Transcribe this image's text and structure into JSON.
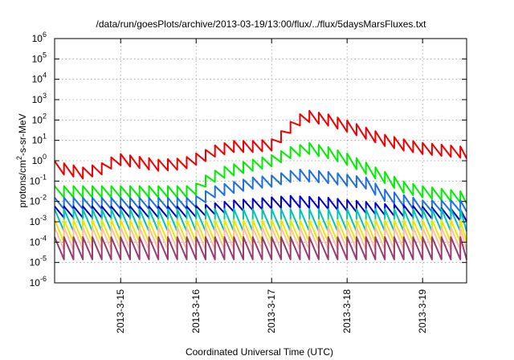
{
  "chart_data": {
    "type": "line",
    "title": "/data/run/goesPlots/archive/2013-03-19/13:00/flux/../flux/5daysMarsFluxes.txt",
    "xlabel": "Coordinated Universal Time (UTC)",
    "ylabel": {
      "prefix": "protons/cm",
      "sup": "2",
      "suffix": "-s-sr-MeV"
    },
    "yscale": "log",
    "ylim": [
      1e-06,
      1000000.0
    ],
    "xlim": [
      "2013-03-14 03:00",
      "2013-03-19 14:00"
    ],
    "grid": true,
    "legend": "none",
    "y_ticks": [
      {
        "value": 1e-06,
        "base": "10",
        "exp": "-6"
      },
      {
        "value": 1e-05,
        "base": "10",
        "exp": "-5"
      },
      {
        "value": 0.0001,
        "base": "10",
        "exp": "-4"
      },
      {
        "value": 0.001,
        "base": "10",
        "exp": "-3"
      },
      {
        "value": 0.01,
        "base": "10",
        "exp": "-2"
      },
      {
        "value": 0.1,
        "base": "10",
        "exp": "-1"
      },
      {
        "value": 1.0,
        "base": "10",
        "exp": "0"
      },
      {
        "value": 10.0,
        "base": "10",
        "exp": "1"
      },
      {
        "value": 100.0,
        "base": "10",
        "exp": "2"
      },
      {
        "value": 1000.0,
        "base": "10",
        "exp": "3"
      },
      {
        "value": 10000.0,
        "base": "10",
        "exp": "4"
      },
      {
        "value": 100000.0,
        "base": "10",
        "exp": "5"
      },
      {
        "value": 1000000.0,
        "base": "10",
        "exp": "6"
      }
    ],
    "x_ticks": [
      {
        "value": "2013-03-15 00:00",
        "label": "2013-3-15"
      },
      {
        "value": "2013-03-16 00:00",
        "label": "2013-3-16"
      },
      {
        "value": "2013-03-17 00:00",
        "label": "2013-3-17"
      },
      {
        "value": "2013-03-18 00:00",
        "label": "2013-3-18"
      },
      {
        "value": "2013-03-19 00:00",
        "label": "2013-3-19"
      }
    ],
    "series": [
      {
        "color": "#ee0000",
        "x": [
          "2013-03-14 03:00",
          "2013-03-14 12:00",
          "2013-03-14 18:00",
          "2013-03-14 23:00",
          "2013-03-15 12:00",
          "2013-03-15 20:00",
          "2013-03-16 03:00",
          "2013-03-16 06:00",
          "2013-03-16 12:00",
          "2013-03-16 18:00",
          "2013-03-17 00:00",
          "2013-03-17 03:00",
          "2013-03-17 05:00",
          "2013-03-17 08:00",
          "2013-03-17 12:00",
          "2013-03-17 18:00",
          "2013-03-18 00:00",
          "2013-03-18 12:00",
          "2013-03-18 18:00",
          "2013-03-19 00:00",
          "2013-03-19 14:00"
        ],
        "y": [
          0.5,
          0.25,
          0.4,
          1.2,
          0.6,
          0.7,
          1.8,
          3,
          5,
          5,
          6,
          15,
          30,
          90,
          150,
          100,
          50,
          10,
          6,
          4,
          2.5
        ]
      },
      {
        "color": "#00ee00",
        "x": [
          "2013-03-14 03:00",
          "2013-03-15 12:00",
          "2013-03-15 23:00",
          "2013-03-16 03:00",
          "2013-03-16 08:00",
          "2013-03-16 18:00",
          "2013-03-17 00:00",
          "2013-03-17 06:00",
          "2013-03-17 12:00",
          "2013-03-17 18:00",
          "2013-03-18 00:00",
          "2013-03-18 12:00",
          "2013-03-18 18:00",
          "2013-03-19 00:00",
          "2013-03-19 14:00"
        ],
        "y": [
          0.03,
          0.03,
          0.03,
          0.1,
          0.25,
          0.6,
          1.0,
          2.5,
          4,
          2.5,
          1.2,
          0.15,
          0.05,
          0.03,
          0.015
        ]
      },
      {
        "color": "#1e6fe0",
        "x": [
          "2013-03-14 03:00",
          "2013-03-15 12:00",
          "2013-03-15 23:00",
          "2013-03-16 06:00",
          "2013-03-16 18:00",
          "2013-03-17 00:00",
          "2013-03-17 08:00",
          "2013-03-17 18:00",
          "2013-03-18 06:00",
          "2013-03-18 12:00",
          "2013-03-19 00:00",
          "2013-03-19 14:00"
        ],
        "y": [
          0.008,
          0.008,
          0.008,
          0.03,
          0.08,
          0.1,
          0.2,
          0.15,
          0.08,
          0.02,
          0.006,
          0.006
        ]
      },
      {
        "color": "#0000cc",
        "x": [
          "2013-03-14 03:00",
          "2013-03-15 23:00",
          "2013-03-16 12:00",
          "2013-03-17 06:00",
          "2013-03-17 18:00",
          "2013-03-18 12:00",
          "2013-03-19 14:00"
        ],
        "y": [
          0.003,
          0.003,
          0.006,
          0.01,
          0.008,
          0.004,
          0.002
        ]
      },
      {
        "color": "#00c4b0",
        "x": [
          "2013-03-14 03:00",
          "2013-03-19 14:00"
        ],
        "y": [
          0.0012,
          0.0012
        ]
      },
      {
        "color": "#e8e800",
        "x": [
          "2013-03-14 03:00",
          "2013-03-19 14:00"
        ],
        "y": [
          0.00035,
          0.00035
        ]
      },
      {
        "color": "#ffc0a0",
        "x": [
          "2013-03-14 03:00",
          "2013-03-19 14:00"
        ],
        "y": [
          0.00015,
          0.00015
        ]
      },
      {
        "color": "#9b3a6e",
        "x": [
          "2013-03-14 03:00",
          "2013-03-19 14:00"
        ],
        "y": [
          5e-05,
          5e-05
        ]
      }
    ]
  }
}
